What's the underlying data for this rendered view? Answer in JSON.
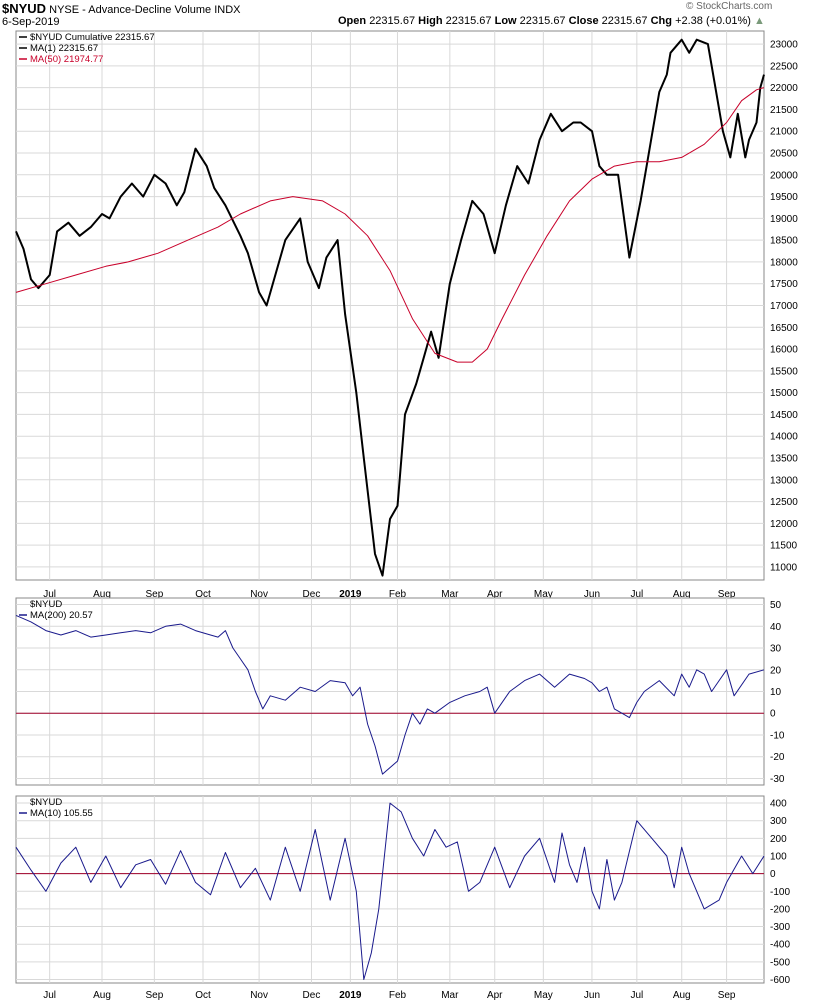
{
  "header": {
    "symbol": "$NYUD",
    "name": "NYSE - Advance-Decline Volume INDX",
    "date": "6-Sep-2019",
    "open_label": "Open",
    "open": "22315.67",
    "high_label": "High",
    "high": "22315.67",
    "low_label": "Low",
    "low": "22315.67",
    "close_label": "Close",
    "close": "22315.67",
    "chg_label": "Chg",
    "chg": "+2.38 (+0.01%)",
    "watermark": "© StockCharts.com"
  },
  "colors": {
    "price": "#000000",
    "ma50": "#c8002a",
    "indicator": "#1a1a8c",
    "zero_line": "#a0002a",
    "grid": "#d9d9d9",
    "border": "#888888"
  },
  "chart_data": [
    {
      "type": "line",
      "title": "",
      "x_labels": [
        "Jul",
        "Aug",
        "Sep",
        "Oct",
        "Nov",
        "Dec",
        "2019",
        "Feb",
        "Mar",
        "Apr",
        "May",
        "Jun",
        "Jul",
        "Aug",
        "Sep"
      ],
      "ylim": [
        10700,
        23300
      ],
      "yticks": [
        11000,
        11500,
        12000,
        12500,
        13000,
        13500,
        14000,
        14500,
        15000,
        15500,
        16000,
        16500,
        17000,
        17500,
        18000,
        18500,
        19000,
        19500,
        20000,
        20500,
        21000,
        21500,
        22000,
        22500,
        23000
      ],
      "grid": true,
      "legend": "top-left",
      "legend_entries": [
        "$NYUD Cumulative 22315.67",
        "MA(1) 22315.67",
        "MA(50) 21974.77"
      ],
      "series": [
        {
          "name": "$NYUD Cumulative",
          "color": "#000000",
          "values": [
            18700,
            18300,
            17600,
            17400,
            17700,
            18700,
            18900,
            18600,
            18800,
            19100,
            19000,
            19500,
            19800,
            19500,
            20000,
            19800,
            19300,
            19600,
            20600,
            20200,
            19700,
            19300,
            18600,
            18200,
            17300,
            17000,
            18500,
            19000,
            18000,
            17400,
            18100,
            18500,
            16800,
            15000,
            13500,
            11300,
            10800,
            12100,
            12400,
            14500,
            15200,
            15800,
            16400,
            15800,
            17500,
            18500,
            19400,
            19100,
            18200,
            19300,
            20200,
            19800,
            20800,
            21400,
            21000,
            21200,
            21200,
            21000,
            20200,
            20000,
            20000,
            18100,
            19400,
            20400,
            21900,
            22300,
            22800,
            23100,
            22800,
            23100,
            23000,
            22000,
            21000,
            20400,
            21400,
            20400,
            20800,
            21200,
            22000,
            22300
          ],
          "x": [
            0,
            0.01,
            0.02,
            0.03,
            0.045,
            0.055,
            0.07,
            0.085,
            0.1,
            0.115,
            0.125,
            0.14,
            0.155,
            0.17,
            0.185,
            0.2,
            0.215,
            0.225,
            0.24,
            0.255,
            0.265,
            0.28,
            0.3,
            0.31,
            0.325,
            0.335,
            0.36,
            0.38,
            0.39,
            0.405,
            0.415,
            0.43,
            0.44,
            0.455,
            0.465,
            0.48,
            0.49,
            0.5,
            0.51,
            0.52,
            0.535,
            0.545,
            0.555,
            0.565,
            0.58,
            0.595,
            0.61,
            0.625,
            0.64,
            0.655,
            0.67,
            0.685,
            0.7,
            0.715,
            0.73,
            0.745,
            0.755,
            0.77,
            0.78,
            0.79,
            0.805,
            0.82,
            0.835,
            0.845,
            0.86,
            0.87,
            0.875,
            0.89,
            0.9,
            0.91,
            0.925,
            0.935,
            0.945,
            0.955,
            0.965,
            0.975,
            0.98,
            0.99,
            0.995,
            1.0
          ]
        },
        {
          "name": "MA(50)",
          "color": "#c8002a",
          "values": [
            17300,
            17500,
            17700,
            17900,
            18000,
            18200,
            18500,
            18800,
            19100,
            19400,
            19500,
            19400,
            19100,
            18600,
            17800,
            16700,
            15900,
            15700,
            15700,
            16000,
            16700,
            17700,
            18600,
            19400,
            19900,
            20200,
            20300,
            20300,
            20400,
            20700,
            21200,
            21700,
            21950,
            22000
          ],
          "x": [
            0,
            0.04,
            0.08,
            0.12,
            0.15,
            0.19,
            0.23,
            0.27,
            0.3,
            0.34,
            0.37,
            0.41,
            0.44,
            0.47,
            0.5,
            0.53,
            0.56,
            0.59,
            0.61,
            0.63,
            0.65,
            0.68,
            0.71,
            0.74,
            0.77,
            0.8,
            0.83,
            0.86,
            0.89,
            0.92,
            0.95,
            0.97,
            0.99,
            1.0
          ]
        }
      ]
    },
    {
      "type": "line",
      "title": "",
      "x_labels": [
        "Jul",
        "Aug",
        "Sep",
        "Oct",
        "Nov",
        "Dec",
        "2019",
        "Feb",
        "Mar",
        "Apr",
        "May",
        "Jun",
        "Jul",
        "Aug",
        "Sep"
      ],
      "ylim": [
        -33,
        53
      ],
      "yticks": [
        -30,
        -20,
        -10,
        0,
        10,
        20,
        30,
        40,
        50
      ],
      "grid": true,
      "legend": "top-left",
      "legend_entries": [
        "$NYUD",
        "MA(200) 20.57"
      ],
      "reference_line": 0,
      "series": [
        {
          "name": "MA(200)",
          "color": "#1a1a8c",
          "values": [
            45,
            42,
            38,
            36,
            38,
            35,
            36,
            37,
            38,
            37,
            40,
            41,
            38,
            36,
            35,
            38,
            30,
            25,
            20,
            10,
            2,
            8,
            6,
            12,
            10,
            15,
            14,
            8,
            12,
            -5,
            -15,
            -28,
            -22,
            -10,
            0,
            -5,
            2,
            0,
            5,
            8,
            10,
            12,
            0,
            10,
            15,
            18,
            12,
            18,
            16,
            14,
            10,
            12,
            2,
            0,
            -2,
            5,
            10,
            15,
            8,
            18,
            12,
            20,
            18,
            10,
            15,
            20,
            8,
            18,
            20
          ],
          "x": [
            0,
            0.02,
            0.04,
            0.06,
            0.08,
            0.1,
            0.12,
            0.14,
            0.16,
            0.18,
            0.2,
            0.22,
            0.24,
            0.26,
            0.27,
            0.28,
            0.29,
            0.3,
            0.31,
            0.32,
            0.33,
            0.34,
            0.36,
            0.38,
            0.4,
            0.42,
            0.44,
            0.45,
            0.46,
            0.47,
            0.48,
            0.49,
            0.51,
            0.52,
            0.53,
            0.54,
            0.55,
            0.56,
            0.58,
            0.6,
            0.62,
            0.63,
            0.64,
            0.66,
            0.68,
            0.7,
            0.72,
            0.74,
            0.76,
            0.77,
            0.78,
            0.79,
            0.8,
            0.81,
            0.82,
            0.83,
            0.84,
            0.86,
            0.88,
            0.89,
            0.9,
            0.91,
            0.92,
            0.93,
            0.94,
            0.95,
            0.96,
            0.98,
            1.0
          ]
        }
      ]
    },
    {
      "type": "line",
      "title": "",
      "x_labels": [
        "Jul",
        "Aug",
        "Sep",
        "Oct",
        "Nov",
        "Dec",
        "2019",
        "Feb",
        "Mar",
        "Apr",
        "May",
        "Jun",
        "Jul",
        "Aug",
        "Sep"
      ],
      "ylim": [
        -620,
        440
      ],
      "yticks": [
        -600,
        -500,
        -400,
        -300,
        -200,
        -100,
        0,
        100,
        200,
        300,
        400
      ],
      "grid": true,
      "legend": "top-left",
      "legend_entries": [
        "$NYUD",
        "MA(10) 105.55"
      ],
      "reference_line": 0,
      "series": [
        {
          "name": "MA(10)",
          "color": "#1a1a8c",
          "values": [
            150,
            20,
            -100,
            60,
            150,
            -50,
            100,
            -80,
            50,
            80,
            -60,
            130,
            -50,
            -120,
            120,
            -80,
            30,
            -150,
            150,
            -100,
            250,
            -150,
            200,
            -100,
            -600,
            -450,
            -200,
            400,
            350,
            200,
            100,
            250,
            150,
            180,
            -100,
            -50,
            150,
            -80,
            100,
            200,
            -50,
            230,
            50,
            -50,
            150,
            -100,
            -200,
            80,
            -150,
            -50,
            300,
            200,
            100,
            -80,
            150,
            0,
            -200,
            -150,
            -50,
            100,
            0,
            100
          ],
          "x": [
            0,
            0.02,
            0.04,
            0.06,
            0.08,
            0.1,
            0.12,
            0.14,
            0.16,
            0.18,
            0.2,
            0.22,
            0.24,
            0.26,
            0.28,
            0.3,
            0.32,
            0.34,
            0.36,
            0.38,
            0.4,
            0.42,
            0.44,
            0.455,
            0.465,
            0.475,
            0.485,
            0.5,
            0.515,
            0.53,
            0.545,
            0.56,
            0.575,
            0.59,
            0.605,
            0.62,
            0.64,
            0.66,
            0.68,
            0.7,
            0.72,
            0.73,
            0.74,
            0.75,
            0.76,
            0.77,
            0.78,
            0.79,
            0.8,
            0.81,
            0.83,
            0.85,
            0.87,
            0.88,
            0.89,
            0.9,
            0.92,
            0.94,
            0.95,
            0.97,
            0.985,
            1.0
          ]
        }
      ]
    }
  ]
}
